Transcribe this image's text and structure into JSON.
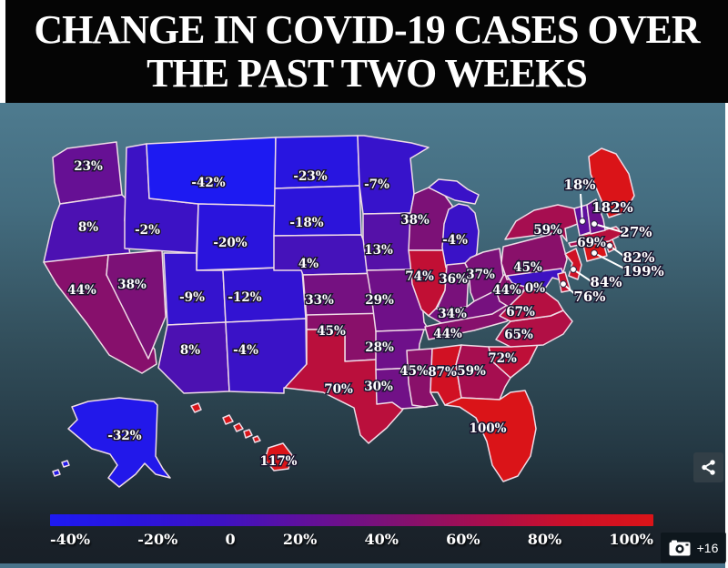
{
  "title": {
    "line1": "CHANGE IN COVID-19 CASES OVER",
    "line2": "THE PAST TWO WEEKS"
  },
  "legend": {
    "ticks": [
      "-40%",
      "-20%",
      "0",
      "20%",
      "40%",
      "60%",
      "80%",
      "100%"
    ]
  },
  "badges": {
    "photo_count": "+16"
  },
  "colors": {
    "background_top": "#4e7b8f",
    "background_bottom": "#181f27",
    "state_border": "#efdbe6",
    "label_text": "#ffffff",
    "gradient_stops": [
      {
        "v": -40,
        "c": "#1d1af2"
      },
      {
        "v": -20,
        "c": "#2a14dd"
      },
      {
        "v": 0,
        "c": "#3e12c2"
      },
      {
        "v": 20,
        "c": "#62109a"
      },
      {
        "v": 40,
        "c": "#7f1173"
      },
      {
        "v": 60,
        "c": "#a80e4e"
      },
      {
        "v": 80,
        "c": "#cc1029"
      },
      {
        "v": 100,
        "c": "#da1418"
      }
    ]
  },
  "chart_data": {
    "type": "choropleth_map",
    "title": "Change in Covid-19 cases over the past two weeks",
    "unit": "percent",
    "value_range": [
      -40,
      100
    ],
    "legend_ticks": [
      "-40%",
      "-20%",
      "0",
      "20%",
      "40%",
      "60%",
      "80%",
      "100%"
    ],
    "states": [
      {
        "code": "WA",
        "label": "23%",
        "value": 23
      },
      {
        "code": "OR",
        "label": "8%",
        "value": 8
      },
      {
        "code": "CA",
        "label": "44%",
        "value": 44
      },
      {
        "code": "NV",
        "label": "38%",
        "value": 38
      },
      {
        "code": "ID",
        "label": "-2%",
        "value": -2
      },
      {
        "code": "MT",
        "label": "-42%",
        "value": -42
      },
      {
        "code": "WY",
        "label": "-20%",
        "value": -20
      },
      {
        "code": "UT",
        "label": "-9%",
        "value": -9
      },
      {
        "code": "CO",
        "label": "-12%",
        "value": -12
      },
      {
        "code": "AZ",
        "label": "8%",
        "value": 8
      },
      {
        "code": "NM",
        "label": "-4%",
        "value": -4
      },
      {
        "code": "ND",
        "label": "-23%",
        "value": -23
      },
      {
        "code": "SD",
        "label": "-18%",
        "value": -18
      },
      {
        "code": "NE",
        "label": "4%",
        "value": 4
      },
      {
        "code": "KS",
        "label": "33%",
        "value": 33
      },
      {
        "code": "OK",
        "label": "45%",
        "value": 45
      },
      {
        "code": "TX",
        "label": "70%",
        "value": 70
      },
      {
        "code": "MN",
        "label": "-7%",
        "value": -7
      },
      {
        "code": "IA",
        "label": "13%",
        "value": 13
      },
      {
        "code": "MO",
        "label": "29%",
        "value": 29
      },
      {
        "code": "AR",
        "label": "28%",
        "value": 28
      },
      {
        "code": "LA",
        "label": "30%",
        "value": 30
      },
      {
        "code": "WI",
        "label": "38%",
        "value": 38
      },
      {
        "code": "IL",
        "label": "74%",
        "value": 74
      },
      {
        "code": "MI",
        "label": "-4%",
        "value": -4
      },
      {
        "code": "IN",
        "label": "36%",
        "value": 36
      },
      {
        "code": "OH",
        "label": "37%",
        "value": 37
      },
      {
        "code": "KY",
        "label": "34%",
        "value": 34
      },
      {
        "code": "TN",
        "label": "44%",
        "value": 44
      },
      {
        "code": "MS",
        "label": "45%",
        "value": 45
      },
      {
        "code": "AL",
        "label": "87%",
        "value": 87
      },
      {
        "code": "GA",
        "label": "59%",
        "value": 59
      },
      {
        "code": "FL",
        "label": "100%",
        "value": 100
      },
      {
        "code": "SC",
        "label": "72%",
        "value": 72
      },
      {
        "code": "NC",
        "label": "65%",
        "value": 65
      },
      {
        "code": "VA",
        "label": "67%",
        "value": 67
      },
      {
        "code": "WV",
        "label": "44%",
        "value": 44
      },
      {
        "code": "PA",
        "label": "45%",
        "value": 45
      },
      {
        "code": "NY",
        "label": "59%",
        "value": 59
      },
      {
        "code": "MD",
        "label": "0%",
        "value": 0
      },
      {
        "code": "DE",
        "label": "76%",
        "value": 76
      },
      {
        "code": "NJ",
        "label": "84%",
        "value": 84
      },
      {
        "code": "CT",
        "label": "199%",
        "value": 199
      },
      {
        "code": "RI",
        "label": "82%",
        "value": 82
      },
      {
        "code": "MA",
        "label": "69%",
        "value": 69
      },
      {
        "code": "VT",
        "label": "18%",
        "value": 18
      },
      {
        "code": "NH",
        "label": "27%",
        "value": 27
      },
      {
        "code": "ME",
        "label": "182%",
        "value": 182
      },
      {
        "code": "AK",
        "label": "-32%",
        "value": -32
      },
      {
        "code": "HI",
        "label": "117%",
        "value": 117
      }
    ]
  }
}
